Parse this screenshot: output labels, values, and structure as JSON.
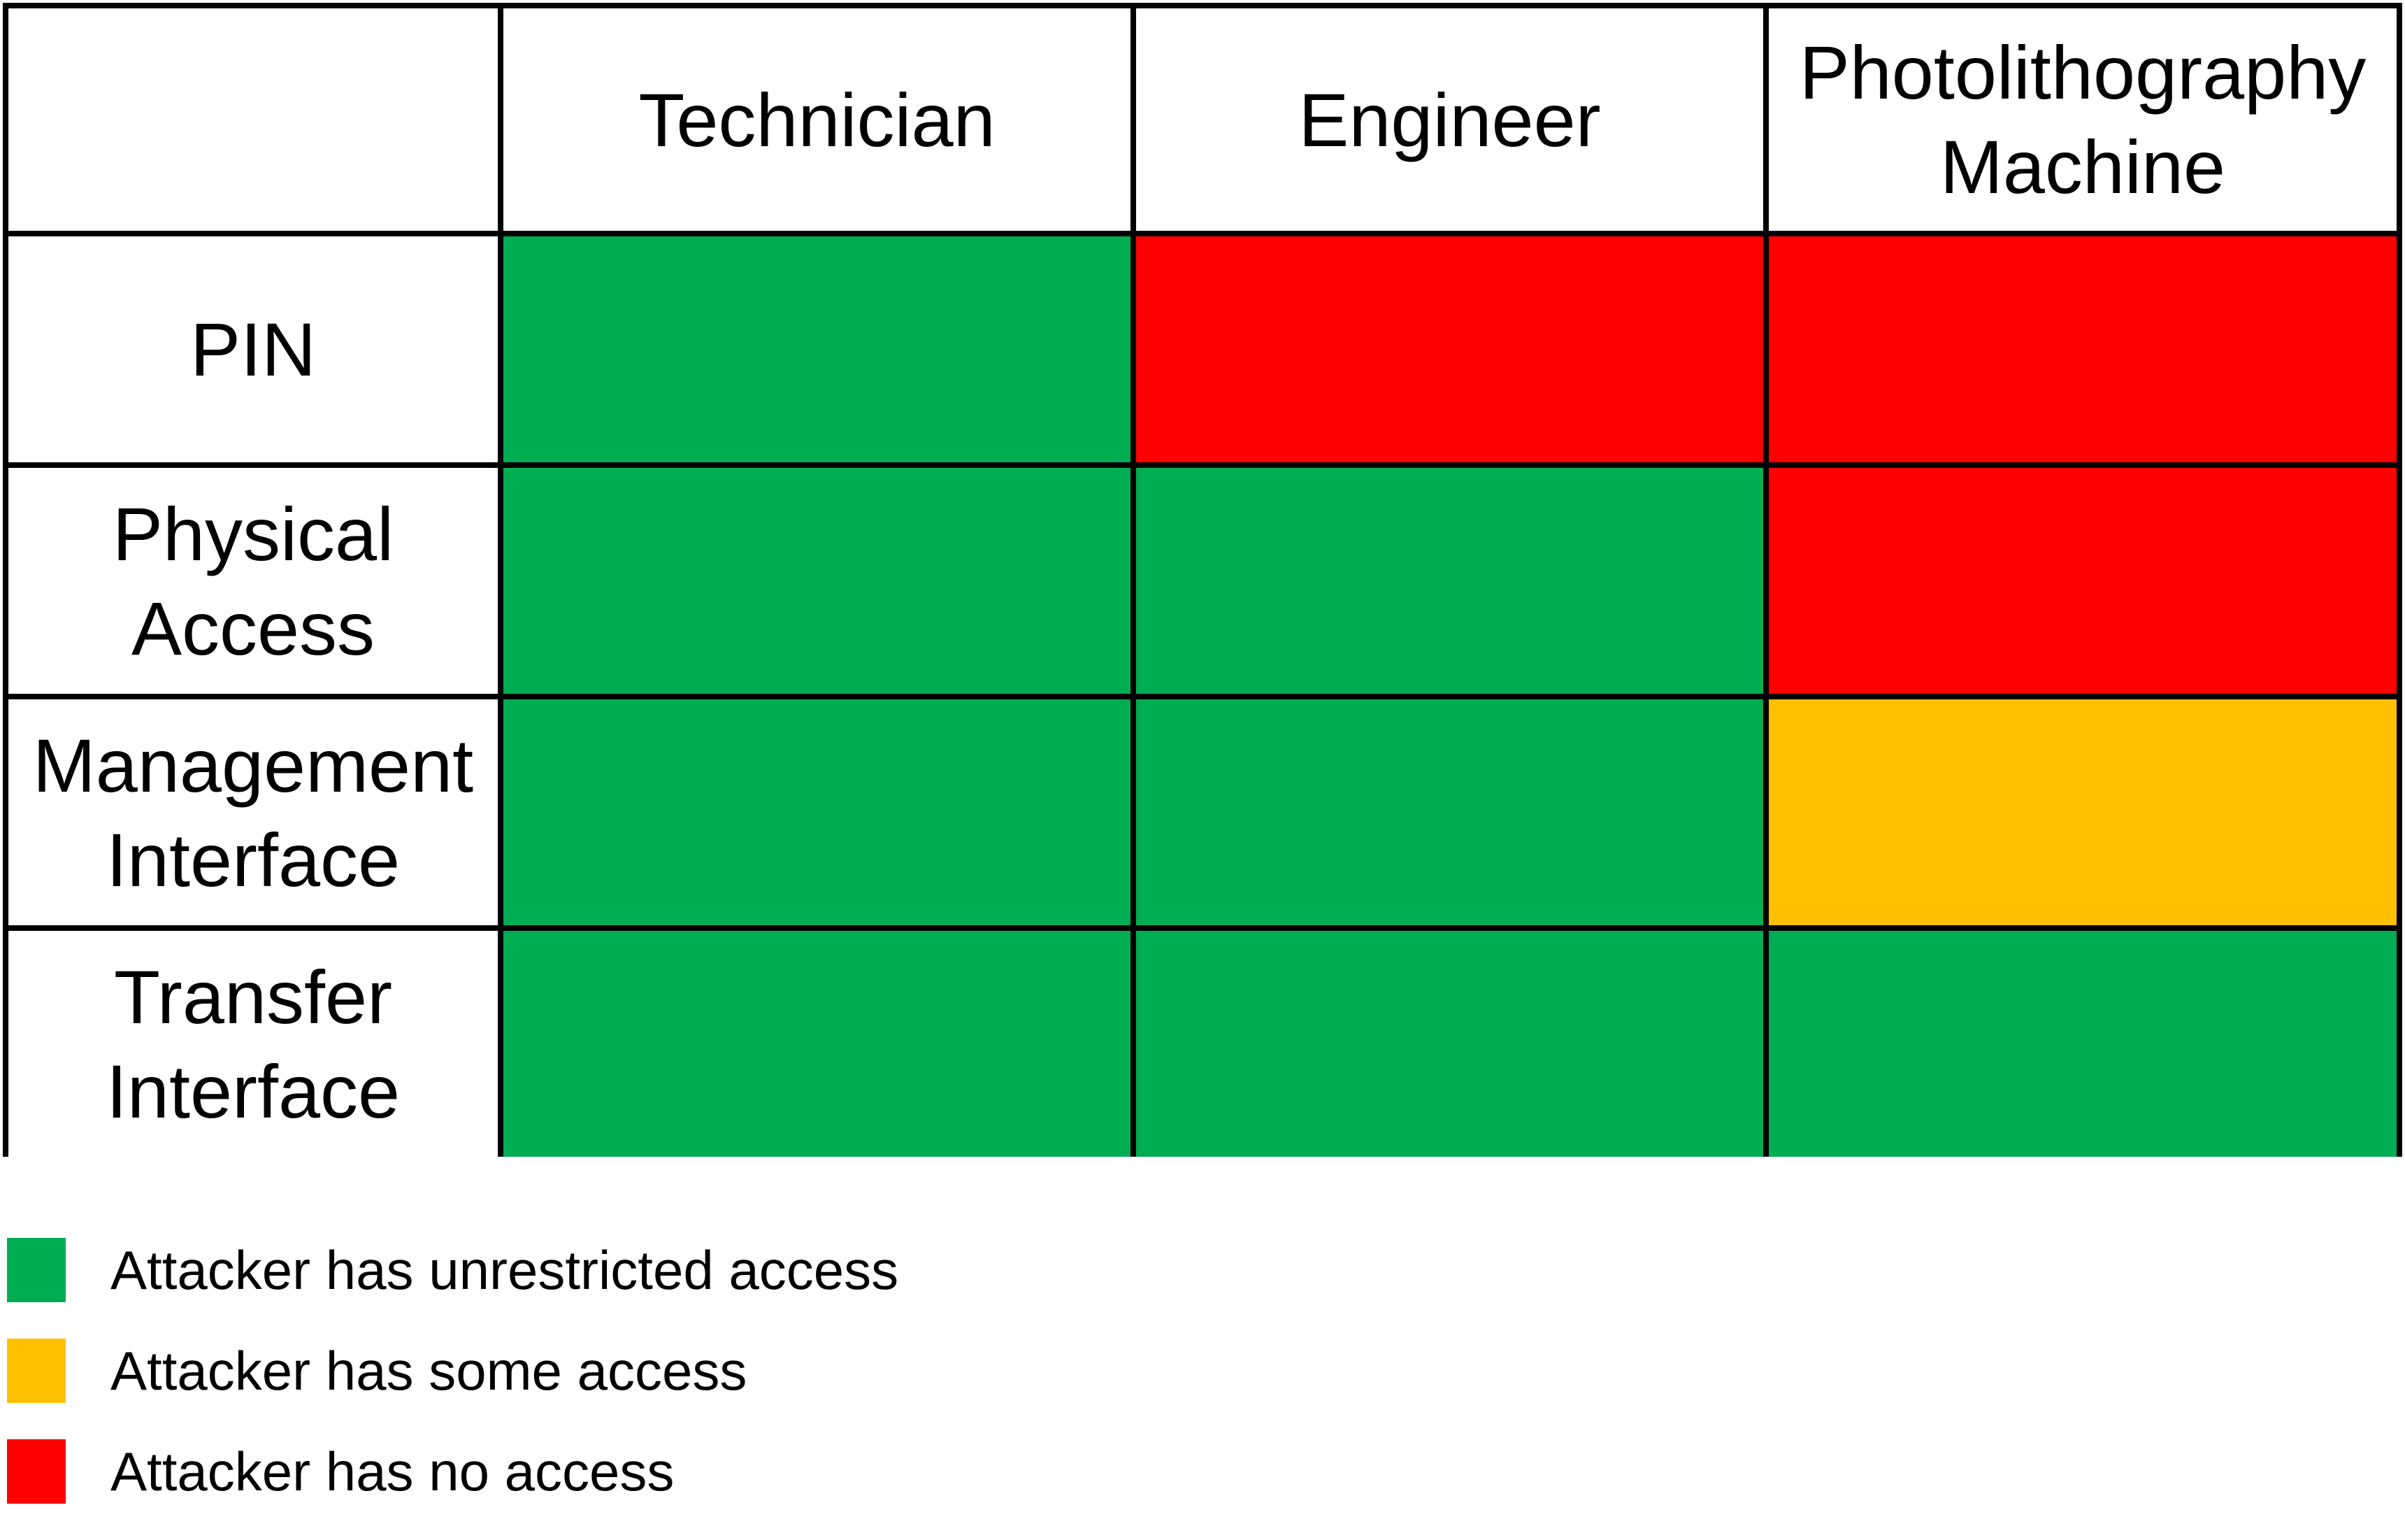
{
  "matrix": {
    "corner": "",
    "columns": [
      "Technician",
      "Engineer",
      "Photolithography Machine"
    ],
    "rows": [
      {
        "label": "PIN",
        "cells": [
          "green",
          "red",
          "red"
        ]
      },
      {
        "label": "Physical Access",
        "cells": [
          "green",
          "green",
          "red"
        ]
      },
      {
        "label": "Management Interface",
        "cells": [
          "green",
          "green",
          "yellow"
        ]
      },
      {
        "label": "Transfer Interface",
        "cells": [
          "green",
          "green",
          "green"
        ]
      }
    ]
  },
  "legend": {
    "items": [
      {
        "state": "green",
        "color": "#00AD52",
        "label": "Attacker has unrestricted access"
      },
      {
        "state": "yellow",
        "color": "#FFC000",
        "label": "Attacker has some access"
      },
      {
        "state": "red",
        "color": "#FF0000",
        "label": "Attacker has no access"
      }
    ]
  },
  "colors": {
    "grid_lines": "#000000",
    "background": "#ffffff",
    "text": "#000000"
  }
}
